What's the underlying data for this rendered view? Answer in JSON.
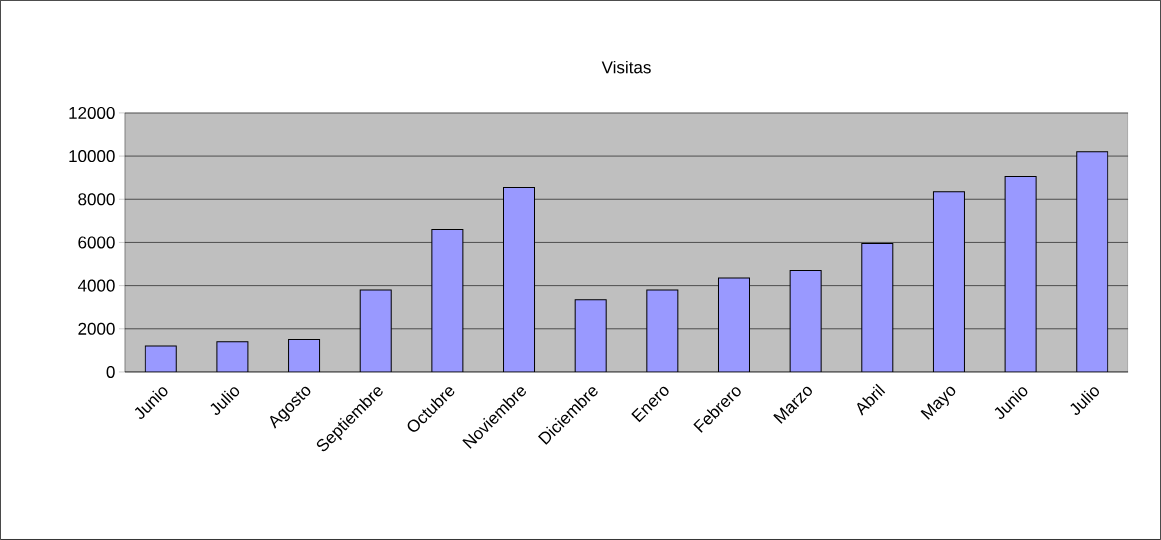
{
  "chart_data": {
    "type": "bar",
    "title": "Visitas",
    "categories": [
      "Junio",
      "Julio",
      "Agosto",
      "Septiembre",
      "Octubre",
      "Noviembre",
      "Diciembre",
      "Enero",
      "Febrero",
      "Marzo",
      "Abril",
      "Mayo",
      "Junio",
      "Julio"
    ],
    "values": [
      1200,
      1400,
      1500,
      3800,
      6600,
      8550,
      3350,
      3800,
      4350,
      4700,
      5950,
      8350,
      9050,
      10200
    ],
    "color": "#9999ff",
    "ylim": [
      0,
      12000
    ],
    "yticks": [
      0,
      2000,
      4000,
      6000,
      8000,
      10000,
      12000
    ],
    "grid": "y"
  }
}
